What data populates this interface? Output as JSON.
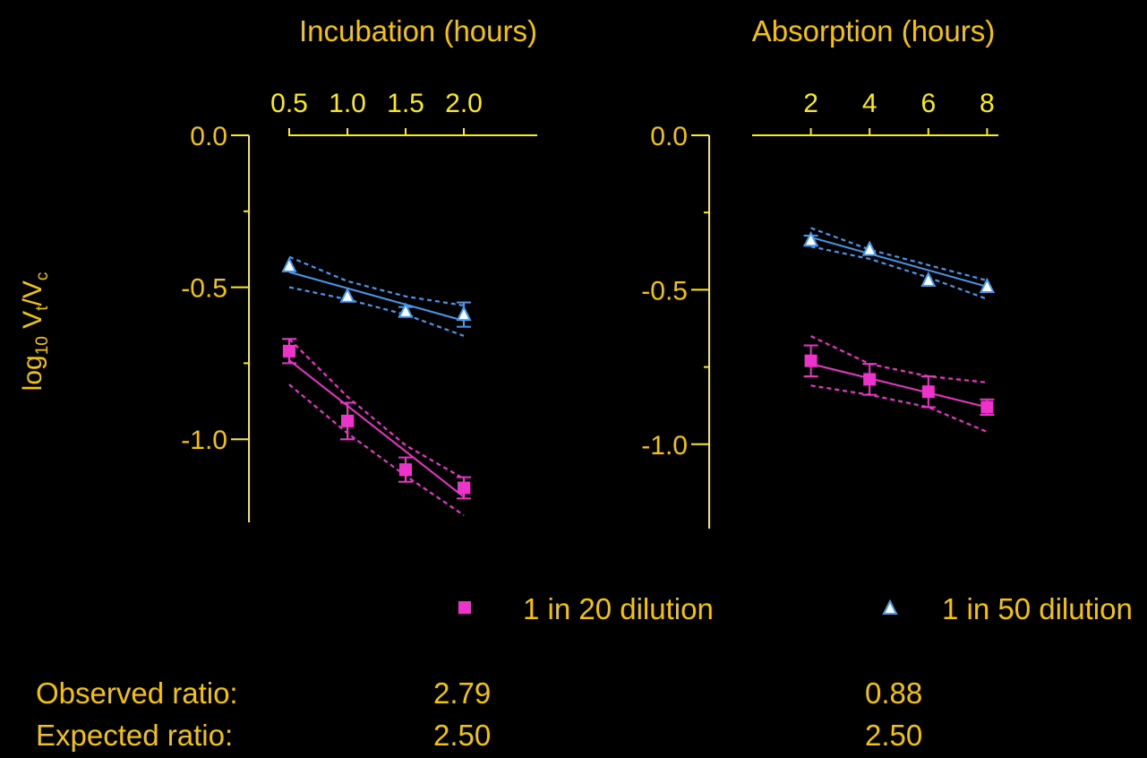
{
  "y_label": {
    "base": "log",
    "sub": "10",
    "v1": " V",
    "t": "t",
    "slash": "/V",
    "c": "c"
  },
  "chart_data": [
    {
      "type": "scatter",
      "xlabel": "Incubation (hours)",
      "x_ticks": [
        "0.5",
        "1.0",
        "1.5",
        "2.0"
      ],
      "y_ticks": [
        "0.0",
        "-0.5",
        "-1.0"
      ],
      "xlim": [
        0.0,
        2.1
      ],
      "ylim": [
        -1.25,
        0.0
      ],
      "series": [
        {
          "name": "1 in 20 dilution",
          "marker": "square",
          "color": "#ee33cc",
          "x": [
            0.5,
            1.0,
            1.5,
            2.0
          ],
          "y": [
            -0.71,
            -0.94,
            -1.1,
            -1.16
          ],
          "error": [
            0.04,
            0.06,
            0.04,
            0.035
          ],
          "fit": {
            "x": [
              0.5,
              2.0
            ],
            "y": [
              -0.74,
              -1.19
            ]
          },
          "ci_upper": {
            "x": [
              0.5,
              1.0,
              1.5,
              2.0
            ],
            "y": [
              -0.67,
              -0.86,
              -1.02,
              -1.13
            ]
          },
          "ci_lower": {
            "x": [
              0.5,
              1.0,
              1.5,
              2.0
            ],
            "y": [
              -0.82,
              -0.98,
              -1.12,
              -1.25
            ]
          }
        },
        {
          "name": "1 in 50 dilution",
          "marker": "triangle",
          "color": "#4499ee",
          "x": [
            0.5,
            1.0,
            1.5,
            2.0
          ],
          "y": [
            -0.43,
            -0.53,
            -0.58,
            -0.59
          ],
          "error": [
            0.005,
            0.005,
            0.015,
            0.04
          ],
          "fit": {
            "x": [
              0.5,
              2.0
            ],
            "y": [
              -0.45,
              -0.61
            ]
          },
          "ci_upper": {
            "x": [
              0.5,
              1.0,
              1.5,
              2.0
            ],
            "y": [
              -0.4,
              -0.48,
              -0.53,
              -0.56
            ]
          },
          "ci_lower": {
            "x": [
              0.5,
              1.0,
              1.5,
              2.0
            ],
            "y": [
              -0.5,
              -0.54,
              -0.59,
              -0.66
            ]
          }
        }
      ]
    },
    {
      "type": "scatter",
      "xlabel": "Absorption (hours)",
      "x_ticks": [
        "2",
        "4",
        "6",
        "8"
      ],
      "y_ticks": [
        "0.0",
        "-0.5",
        "-1.0"
      ],
      "xlim": [
        0.0,
        8.3
      ],
      "ylim": [
        -1.25,
        0.0
      ],
      "series": [
        {
          "name": "1 in 20 dilution",
          "marker": "square",
          "color": "#ee33cc",
          "x": [
            2,
            4,
            6,
            8
          ],
          "y": [
            -0.73,
            -0.79,
            -0.83,
            -0.88
          ],
          "error": [
            0.05,
            0.05,
            0.05,
            0.025
          ],
          "fit": {
            "x": [
              2,
              8
            ],
            "y": [
              -0.74,
              -0.88
            ]
          },
          "ci_upper": {
            "x": [
              2,
              4,
              6,
              8
            ],
            "y": [
              -0.65,
              -0.74,
              -0.78,
              -0.8
            ]
          },
          "ci_lower": {
            "x": [
              2,
              4,
              6,
              8
            ],
            "y": [
              -0.81,
              -0.84,
              -0.88,
              -0.96
            ]
          }
        },
        {
          "name": "1 in 50 dilution",
          "marker": "triangle",
          "color": "#4499ee",
          "x": [
            2,
            4,
            6,
            8
          ],
          "y": [
            -0.34,
            -0.37,
            -0.47,
            -0.49
          ],
          "error": [
            0.015,
            0.005,
            0.005,
            0.005
          ],
          "fit": {
            "x": [
              2,
              8
            ],
            "y": [
              -0.33,
              -0.49
            ]
          },
          "ci_upper": {
            "x": [
              2,
              4,
              6,
              8
            ],
            "y": [
              -0.3,
              -0.37,
              -0.42,
              -0.47
            ]
          },
          "ci_lower": {
            "x": [
              2,
              4,
              6,
              8
            ],
            "y": [
              -0.36,
              -0.4,
              -0.46,
              -0.53
            ]
          }
        }
      ]
    }
  ],
  "legend": {
    "items": [
      {
        "label": "1 in 20 dilution",
        "marker": "square",
        "color": "#ee33cc"
      },
      {
        "label": "1 in 50 dilution",
        "marker": "triangle",
        "color": "#4499ee"
      }
    ]
  },
  "ratios": {
    "observed": {
      "label": "Observed ratio:",
      "values": [
        "2.79",
        "0.88"
      ]
    },
    "expected": {
      "label": "Expected ratio:",
      "values": [
        "2.50",
        "2.50"
      ]
    }
  },
  "colors": {
    "axis": "#ffee00",
    "text": "#f5c400",
    "triangle_fill": "#ffffff",
    "background": "#000000"
  }
}
